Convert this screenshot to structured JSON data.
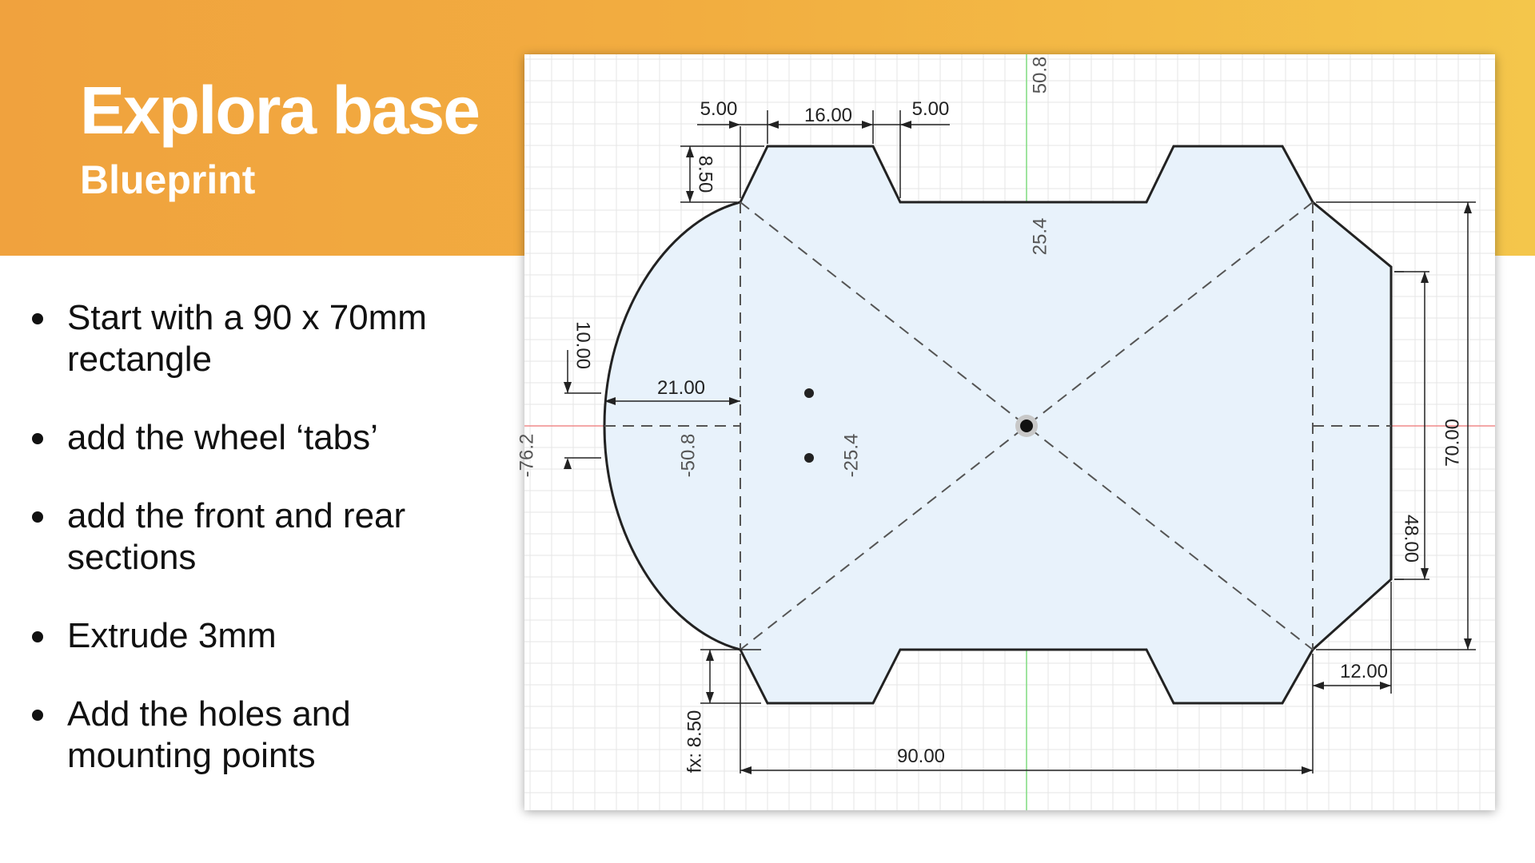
{
  "header": {
    "title": "Explora base",
    "subtitle": "Blueprint",
    "gradient_colors": [
      "#f0a23e",
      "#f4c64b"
    ]
  },
  "bullets": [
    {
      "line1": "Start with a 90 x 70mm",
      "line2": "rectangle"
    },
    {
      "line1": "add the wheel ‘tabs’",
      "line2": ""
    },
    {
      "line1": "add the front and rear",
      "line2": "sections"
    },
    {
      "line1": "Extrude 3mm",
      "line2": ""
    },
    {
      "line1": "Add the holes and",
      "line2": "mounting points"
    }
  ],
  "blueprint": {
    "colors": {
      "fill": "#e8f2fb",
      "outline": "#222222",
      "grid": "#e6e6e6",
      "x_axis": "#f08a8a",
      "y_axis": "#7fdc7f"
    },
    "dimensions": {
      "tab_side_left": "5.00",
      "tab_top": "16.00",
      "tab_side_right": "5.00",
      "tab_height": "8.50",
      "arc_chord": "10.00",
      "arc_offset": "21.00",
      "overall_height": "70.00",
      "rear_height": "48.00",
      "rear_offset": "12.00",
      "tab_height_fx": "fx: 8.50",
      "overall_width": "90.00"
    },
    "axis_labels": {
      "top_y": "50.8",
      "center_y": "25.4",
      "left_x": "-76.2",
      "x_neg_50": "-50.8",
      "x_neg_25": "-25.4"
    }
  }
}
